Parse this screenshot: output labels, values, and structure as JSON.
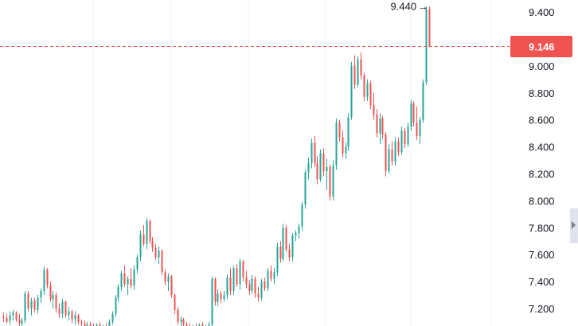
{
  "chart_data": {
    "type": "candlestick",
    "y_ticks": [
      "9.400",
      "9.200",
      "9.000",
      "8.800",
      "8.600",
      "8.400",
      "8.200",
      "8.000",
      "7.800",
      "7.600",
      "7.400",
      "7.200"
    ],
    "ylim": [
      7.07,
      9.5
    ],
    "high_marker_label": "9.440",
    "high_value": 9.44,
    "last_price_label": "9.146",
    "last_price": 9.146,
    "grid": "vertical",
    "colors": {
      "up": "#26a69a",
      "down": "#ef5350",
      "grid": "#f0f3fa",
      "price_line": "#ef5350",
      "text": "#131722"
    },
    "candles": [
      [
        7.14,
        7.17,
        7.1,
        7.13
      ],
      [
        7.13,
        7.16,
        7.09,
        7.1
      ],
      [
        7.11,
        7.18,
        7.08,
        7.15
      ],
      [
        7.15,
        7.19,
        7.11,
        7.17
      ],
      [
        7.17,
        7.18,
        7.1,
        7.12
      ],
      [
        7.12,
        7.16,
        7.07,
        7.09
      ],
      [
        7.09,
        7.13,
        7.06,
        7.11
      ],
      [
        7.11,
        7.33,
        7.09,
        7.31
      ],
      [
        7.31,
        7.33,
        7.18,
        7.2
      ],
      [
        7.2,
        7.28,
        7.15,
        7.26
      ],
      [
        7.26,
        7.28,
        7.17,
        7.19
      ],
      [
        7.19,
        7.3,
        7.16,
        7.28
      ],
      [
        7.28,
        7.35,
        7.24,
        7.33
      ],
      [
        7.33,
        7.51,
        7.3,
        7.49
      ],
      [
        7.49,
        7.5,
        7.35,
        7.37
      ],
      [
        7.37,
        7.4,
        7.25,
        7.27
      ],
      [
        7.27,
        7.33,
        7.2,
        7.3
      ],
      [
        7.3,
        7.32,
        7.17,
        7.2
      ],
      [
        7.2,
        7.24,
        7.13,
        7.16
      ],
      [
        7.16,
        7.27,
        7.13,
        7.25
      ],
      [
        7.25,
        7.26,
        7.13,
        7.15
      ],
      [
        7.15,
        7.21,
        7.11,
        7.18
      ],
      [
        7.18,
        7.19,
        7.09,
        7.12
      ],
      [
        7.12,
        7.18,
        7.08,
        7.15
      ],
      [
        7.15,
        7.16,
        7.08,
        7.1
      ],
      [
        7.1,
        7.12,
        7.06,
        7.09
      ],
      [
        7.09,
        7.11,
        7.05,
        7.07
      ],
      [
        7.07,
        7.1,
        7.05,
        7.08
      ],
      [
        7.08,
        7.1,
        7.05,
        7.07
      ],
      [
        7.07,
        7.09,
        7.05,
        7.06
      ],
      [
        7.06,
        7.09,
        7.05,
        7.08
      ],
      [
        7.08,
        7.1,
        7.05,
        7.06
      ],
      [
        7.06,
        7.08,
        7.05,
        7.07
      ],
      [
        7.07,
        7.09,
        7.05,
        7.06
      ],
      [
        7.06,
        7.12,
        7.05,
        7.1
      ],
      [
        7.1,
        7.18,
        7.08,
        7.16
      ],
      [
        7.16,
        7.3,
        7.14,
        7.28
      ],
      [
        7.28,
        7.38,
        7.25,
        7.36
      ],
      [
        7.36,
        7.48,
        7.33,
        7.46
      ],
      [
        7.46,
        7.52,
        7.36,
        7.38
      ],
      [
        7.38,
        7.44,
        7.3,
        7.42
      ],
      [
        7.42,
        7.5,
        7.35,
        7.37
      ],
      [
        7.37,
        7.52,
        7.34,
        7.49
      ],
      [
        7.49,
        7.6,
        7.46,
        7.58
      ],
      [
        7.58,
        7.78,
        7.55,
        7.75
      ],
      [
        7.75,
        7.82,
        7.66,
        7.68
      ],
      [
        7.68,
        7.87,
        7.64,
        7.85
      ],
      [
        7.85,
        7.86,
        7.68,
        7.7
      ],
      [
        7.7,
        7.73,
        7.62,
        7.65
      ],
      [
        7.65,
        7.68,
        7.56,
        7.58
      ],
      [
        7.58,
        7.66,
        7.53,
        7.63
      ],
      [
        7.63,
        7.64,
        7.45,
        7.47
      ],
      [
        7.47,
        7.49,
        7.37,
        7.4
      ],
      [
        7.4,
        7.46,
        7.33,
        7.44
      ],
      [
        7.44,
        7.45,
        7.28,
        7.3
      ],
      [
        7.3,
        7.31,
        7.16,
        7.19
      ],
      [
        7.19,
        7.21,
        7.08,
        7.1
      ],
      [
        7.1,
        7.14,
        7.06,
        7.12
      ],
      [
        7.12,
        7.13,
        7.05,
        7.08
      ],
      [
        7.08,
        7.1,
        7.05,
        7.07
      ],
      [
        7.07,
        7.09,
        7.05,
        7.06
      ],
      [
        7.06,
        7.08,
        7.05,
        7.07
      ],
      [
        7.07,
        7.09,
        7.05,
        7.06
      ],
      [
        7.06,
        7.09,
        7.05,
        7.08
      ],
      [
        7.08,
        7.1,
        7.05,
        7.06
      ],
      [
        7.06,
        7.08,
        7.05,
        7.07
      ],
      [
        7.07,
        7.1,
        7.05,
        7.08
      ],
      [
        7.08,
        7.44,
        7.06,
        7.42
      ],
      [
        7.42,
        7.43,
        7.22,
        7.25
      ],
      [
        7.25,
        7.34,
        7.22,
        7.31
      ],
      [
        7.31,
        7.33,
        7.24,
        7.27
      ],
      [
        7.27,
        7.33,
        7.25,
        7.3
      ],
      [
        7.3,
        7.45,
        7.27,
        7.43
      ],
      [
        7.43,
        7.5,
        7.3,
        7.33
      ],
      [
        7.33,
        7.52,
        7.3,
        7.5
      ],
      [
        7.5,
        7.53,
        7.36,
        7.38
      ],
      [
        7.38,
        7.57,
        7.34,
        7.55
      ],
      [
        7.55,
        7.56,
        7.4,
        7.43
      ],
      [
        7.43,
        7.48,
        7.35,
        7.38
      ],
      [
        7.38,
        7.41,
        7.3,
        7.33
      ],
      [
        7.33,
        7.45,
        7.31,
        7.42
      ],
      [
        7.42,
        7.44,
        7.28,
        7.31
      ],
      [
        7.31,
        7.36,
        7.25,
        7.28
      ],
      [
        7.28,
        7.42,
        7.26,
        7.4
      ],
      [
        7.4,
        7.43,
        7.33,
        7.35
      ],
      [
        7.35,
        7.5,
        7.33,
        7.48
      ],
      [
        7.48,
        7.52,
        7.4,
        7.42
      ],
      [
        7.42,
        7.5,
        7.38,
        7.47
      ],
      [
        7.47,
        7.69,
        7.44,
        7.66
      ],
      [
        7.66,
        7.7,
        7.54,
        7.57
      ],
      [
        7.57,
        7.83,
        7.55,
        7.8
      ],
      [
        7.8,
        7.82,
        7.62,
        7.64
      ],
      [
        7.64,
        7.68,
        7.55,
        7.58
      ],
      [
        7.58,
        7.76,
        7.55,
        7.74
      ],
      [
        7.74,
        7.78,
        7.7,
        7.76
      ],
      [
        7.76,
        7.83,
        7.72,
        7.81
      ],
      [
        7.81,
        7.99,
        7.78,
        7.97
      ],
      [
        7.97,
        8.23,
        7.94,
        8.21
      ],
      [
        8.21,
        8.32,
        8.16,
        8.28
      ],
      [
        8.28,
        8.46,
        8.24,
        8.43
      ],
      [
        8.43,
        8.48,
        8.25,
        8.28
      ],
      [
        8.28,
        8.33,
        8.12,
        8.16
      ],
      [
        8.16,
        8.38,
        8.14,
        8.35
      ],
      [
        8.35,
        8.39,
        8.18,
        8.22
      ],
      [
        8.22,
        8.31,
        8.08,
        8.25
      ],
      [
        8.25,
        8.27,
        8.0,
        8.03
      ],
      [
        8.03,
        8.3,
        8.0,
        8.26
      ],
      [
        8.26,
        8.61,
        8.23,
        8.58
      ],
      [
        8.58,
        8.6,
        8.44,
        8.47
      ],
      [
        8.47,
        8.52,
        8.32,
        8.35
      ],
      [
        8.35,
        8.43,
        8.31,
        8.4
      ],
      [
        8.4,
        8.65,
        8.37,
        8.62
      ],
      [
        8.62,
        9.03,
        8.6,
        9.0
      ],
      [
        9.0,
        9.08,
        8.83,
        8.86
      ],
      [
        8.86,
        9.07,
        8.84,
        9.05
      ],
      [
        9.05,
        9.1,
        8.9,
        8.93
      ],
      [
        8.93,
        8.95,
        8.74,
        8.77
      ],
      [
        8.77,
        8.9,
        8.74,
        8.87
      ],
      [
        8.87,
        8.89,
        8.68,
        8.71
      ],
      [
        8.71,
        8.8,
        8.6,
        8.64
      ],
      [
        8.64,
        8.68,
        8.47,
        8.5
      ],
      [
        8.5,
        8.65,
        8.42,
        8.61
      ],
      [
        8.61,
        8.63,
        8.46,
        8.49
      ],
      [
        8.49,
        8.51,
        8.18,
        8.22
      ],
      [
        8.22,
        8.42,
        8.2,
        8.38
      ],
      [
        8.38,
        8.44,
        8.26,
        8.29
      ],
      [
        8.29,
        8.47,
        8.26,
        8.44
      ],
      [
        8.44,
        8.47,
        8.33,
        8.36
      ],
      [
        8.36,
        8.55,
        8.34,
        8.52
      ],
      [
        8.52,
        8.54,
        8.39,
        8.42
      ],
      [
        8.42,
        8.58,
        8.4,
        8.55
      ],
      [
        8.55,
        8.75,
        8.52,
        8.72
      ],
      [
        8.72,
        8.74,
        8.55,
        8.58
      ],
      [
        8.58,
        8.7,
        8.45,
        8.48
      ],
      [
        8.48,
        8.62,
        8.42,
        8.6
      ],
      [
        8.6,
        8.9,
        8.58,
        8.88
      ],
      [
        8.88,
        9.44,
        8.86,
        9.42
      ],
      [
        9.42,
        9.44,
        9.14,
        9.146
      ]
    ]
  }
}
